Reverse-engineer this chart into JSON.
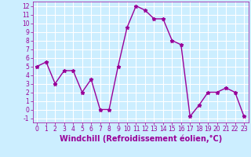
{
  "x": [
    0,
    1,
    2,
    3,
    4,
    5,
    6,
    7,
    8,
    9,
    10,
    11,
    12,
    13,
    14,
    15,
    16,
    17,
    18,
    19,
    20,
    21,
    22,
    23
  ],
  "y": [
    5,
    5.5,
    3,
    4.5,
    4.5,
    2,
    3.5,
    0,
    0,
    5,
    9.5,
    12,
    11.5,
    10.5,
    10.5,
    8,
    7.5,
    -0.8,
    0.5,
    2,
    2,
    2.5,
    2,
    -0.8
  ],
  "line_color": "#990099",
  "marker": "*",
  "marker_color": "#990099",
  "bg_color": "#cceeff",
  "grid_color": "#ffffff",
  "xlabel": "Windchill (Refroidissement éolien,°C)",
  "xlabel_color": "#990099",
  "ylim": [
    -1.5,
    12.5
  ],
  "xlim": [
    -0.5,
    23.5
  ],
  "yticks": [
    -1,
    0,
    1,
    2,
    3,
    4,
    5,
    6,
    7,
    8,
    9,
    10,
    11,
    12
  ],
  "xticks": [
    0,
    1,
    2,
    3,
    4,
    5,
    6,
    7,
    8,
    9,
    10,
    11,
    12,
    13,
    14,
    15,
    16,
    17,
    18,
    19,
    20,
    21,
    22,
    23
  ],
  "tick_color": "#990099",
  "tick_fontsize": 5.5,
  "xlabel_fontsize": 7.0,
  "line_width": 1.0,
  "marker_size": 3.5
}
